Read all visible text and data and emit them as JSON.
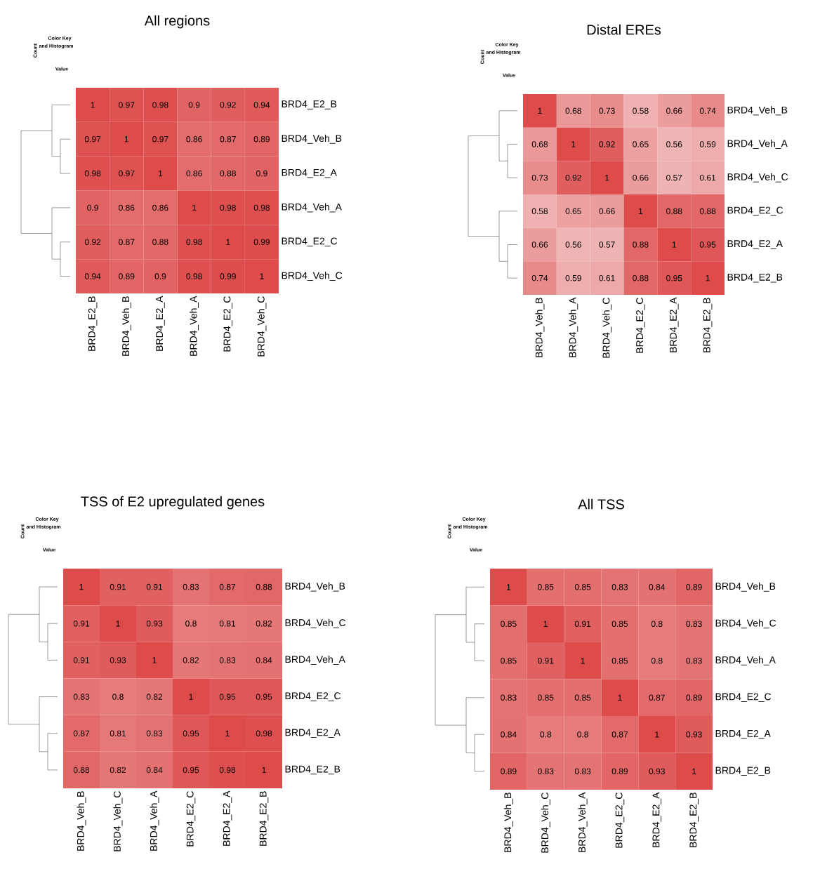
{
  "chart_data": [
    {
      "type": "heatmap",
      "title": "All regions",
      "data_labels": true,
      "categories": [
        "BRD4_E2_B",
        "BRD4_Veh_B",
        "BRD4_E2_A",
        "BRD4_Veh_A",
        "BRD4_E2_C",
        "BRD4_Veh_C"
      ],
      "y_categories": [
        "BRD4_E2_B",
        "BRD4_Veh_B",
        "BRD4_E2_A",
        "BRD4_Veh_A",
        "BRD4_E2_C",
        "BRD4_Veh_C"
      ],
      "cells": [
        [
          1,
          0.97,
          0.98,
          0.9,
          0.92,
          0.94
        ],
        [
          0.97,
          1,
          0.97,
          0.86,
          0.87,
          0.89
        ],
        [
          0.98,
          0.97,
          1,
          0.86,
          0.88,
          0.9
        ],
        [
          0.9,
          0.86,
          0.86,
          1,
          0.98,
          0.98
        ],
        [
          0.92,
          0.87,
          0.88,
          0.98,
          1,
          0.99
        ],
        [
          0.94,
          0.89,
          0.9,
          0.98,
          0.99,
          1
        ]
      ],
      "annotations": [
        "Color Key",
        "and Histogram",
        "Count",
        "Value"
      ]
    },
    {
      "type": "heatmap",
      "title": "Distal EREs",
      "data_labels": true,
      "categories": [
        "BRD4_Veh_B",
        "BRD4_Veh_A",
        "BRD4_Veh_C",
        "BRD4_E2_C",
        "BRD4_E2_A",
        "BRD4_E2_B"
      ],
      "y_categories": [
        "BRD4_Veh_B",
        "BRD4_Veh_A",
        "BRD4_Veh_C",
        "BRD4_E2_C",
        "BRD4_E2_A",
        "BRD4_E2_B"
      ],
      "cells": [
        [
          1,
          0.68,
          0.73,
          0.58,
          0.66,
          0.74
        ],
        [
          0.68,
          1,
          0.92,
          0.65,
          0.56,
          0.59
        ],
        [
          0.73,
          0.92,
          1,
          0.66,
          0.57,
          0.61
        ],
        [
          0.58,
          0.65,
          0.66,
          1,
          0.88,
          0.88
        ],
        [
          0.66,
          0.56,
          0.57,
          0.88,
          1,
          0.95
        ],
        [
          0.74,
          0.59,
          0.61,
          0.88,
          0.95,
          1
        ]
      ],
      "annotations": [
        "Color Key",
        "and Histogram",
        "Count",
        "Value"
      ]
    },
    {
      "type": "heatmap",
      "title": "TSS of E2 upregulated genes",
      "data_labels": true,
      "categories": [
        "BRD4_Veh_B",
        "BRD4_Veh_C",
        "BRD4_Veh_A",
        "BRD4_E2_C",
        "BRD4_E2_A",
        "BRD4_E2_B"
      ],
      "y_categories": [
        "BRD4_Veh_B",
        "BRD4_Veh_C",
        "BRD4_Veh_A",
        "BRD4_E2_C",
        "BRD4_E2_A",
        "BRD4_E2_B"
      ],
      "cells": [
        [
          1,
          0.91,
          0.91,
          0.83,
          0.87,
          0.88
        ],
        [
          0.91,
          1,
          0.93,
          0.8,
          0.81,
          0.82
        ],
        [
          0.91,
          0.93,
          1,
          0.82,
          0.83,
          0.84
        ],
        [
          0.83,
          0.8,
          0.82,
          1,
          0.95,
          0.95
        ],
        [
          0.87,
          0.81,
          0.83,
          0.95,
          1,
          0.98
        ],
        [
          0.88,
          0.82,
          0.84,
          0.95,
          0.98,
          1
        ]
      ],
      "annotations": [
        "Color Key",
        "and Histogram",
        "Count",
        "Value"
      ]
    },
    {
      "type": "heatmap",
      "title": "All TSS",
      "data_labels": true,
      "categories": [
        "BRD4_Veh_B",
        "BRD4_Veh_C",
        "BRD4_Veh_A",
        "BRD4_E2_C",
        "BRD4_E2_A",
        "BRD4_E2_B"
      ],
      "y_categories": [
        "BRD4_Veh_B",
        "BRD4_Veh_C",
        "BRD4_Veh_A",
        "BRD4_E2_C",
        "BRD4_E2_A",
        "BRD4_E2_B"
      ],
      "cells": [
        [
          1,
          0.85,
          0.85,
          0.83,
          0.84,
          0.89
        ],
        [
          0.85,
          1,
          0.91,
          0.85,
          0.8,
          0.83
        ],
        [
          0.85,
          0.91,
          1,
          0.85,
          0.8,
          0.83
        ],
        [
          0.83,
          0.85,
          0.85,
          1,
          0.87,
          0.89
        ],
        [
          0.84,
          0.8,
          0.8,
          0.87,
          1,
          0.93
        ],
        [
          0.89,
          0.83,
          0.83,
          0.89,
          0.93,
          1
        ]
      ],
      "annotations": [
        "Color Key",
        "and Histogram",
        "Count",
        "Value"
      ]
    }
  ]
}
